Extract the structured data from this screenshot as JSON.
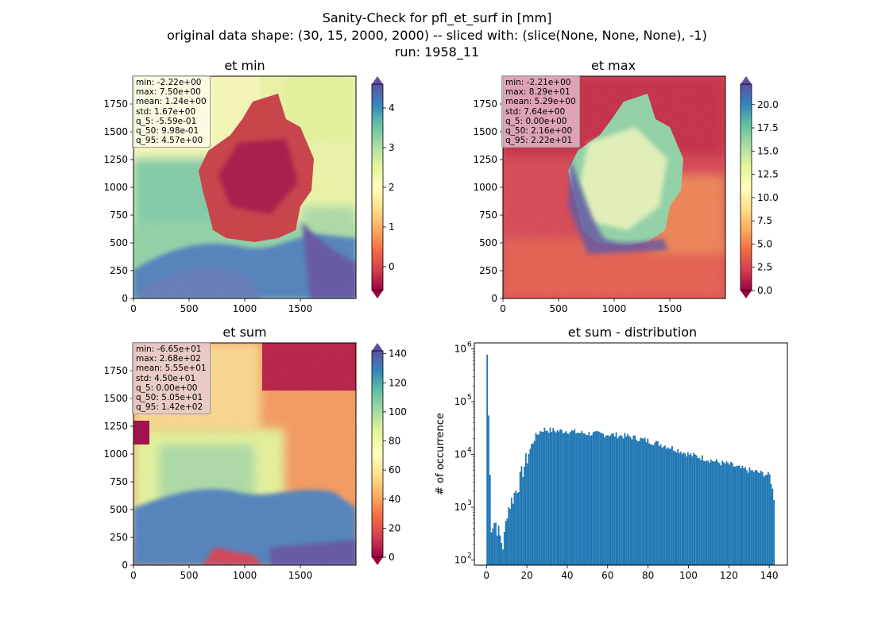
{
  "suptitle": {
    "line1": "Sanity-Check for pfl_et_surf in [mm]",
    "line2": "original data shape: (30, 15, 2000, 2000) -- sliced with: (slice(None, None, None), -1)",
    "line3": "run: 1958_11"
  },
  "colors": {
    "colormap": "Spectral",
    "colormap_stops": [
      "#9e0142",
      "#d53e4f",
      "#f46d43",
      "#fdae61",
      "#fee08b",
      "#ffffbf",
      "#e6f598",
      "#abdda4",
      "#66c2a5",
      "#3288bd",
      "#5e4fa2"
    ],
    "histogram_bar": "#1f77b4"
  },
  "panels": {
    "et_min": {
      "title": "et min",
      "x_ticks": [
        "0",
        "500",
        "1000",
        "1500"
      ],
      "y_ticks": [
        "0",
        "250",
        "500",
        "750",
        "1000",
        "1250",
        "1500",
        "1750"
      ],
      "colorbar_ticks": [
        "0",
        "1",
        "2",
        "3",
        "4"
      ],
      "colorbar_range": [
        -0.6,
        4.6
      ],
      "stats": {
        "min": "min: -2.22e+00",
        "max": "max: 7.50e+00",
        "mean": "mean: 1.24e+00",
        "std": "std: 1.67e+00",
        "q_5": "q_5: -5.59e-01",
        "q_50": "q_50: 9.98e-01",
        "q_95": "q_95: 4.57e+00"
      }
    },
    "et_max": {
      "title": "et max",
      "x_ticks": [
        "0",
        "500",
        "1000",
        "1500"
      ],
      "y_ticks": [
        "0",
        "250",
        "500",
        "750",
        "1000",
        "1250",
        "1500",
        "1750"
      ],
      "colorbar_ticks": [
        "0.0",
        "2.5",
        "5.0",
        "7.5",
        "10.0",
        "12.5",
        "15.0",
        "17.5",
        "20.0"
      ],
      "colorbar_range": [
        0,
        22.2
      ],
      "stats": {
        "min": "min: -2.21e+00",
        "max": "max: 8.29e+01",
        "mean": "mean: 5.29e+00",
        "std": "std: 7.64e+00",
        "q_5": "q_5: 0.00e+00",
        "q_50": "q_50: 2.16e+00",
        "q_95": "q_95: 2.22e+01"
      }
    },
    "et_sum": {
      "title": "et sum",
      "x_ticks": [
        "0",
        "500",
        "1000",
        "1500"
      ],
      "y_ticks": [
        "0",
        "250",
        "500",
        "750",
        "1000",
        "1250",
        "1500",
        "1750"
      ],
      "colorbar_ticks": [
        "0",
        "20",
        "40",
        "60",
        "80",
        "100",
        "120",
        "140"
      ],
      "colorbar_range": [
        0,
        142
      ],
      "stats": {
        "min": "min: -6.65e+01",
        "max": "max: 2.68e+02",
        "mean": "mean: 5.55e+01",
        "std": "std: 4.50e+01",
        "q_5": "q_5: 0.00e+00",
        "q_50": "q_50: 5.05e+01",
        "q_95": "q_95: 1.42e+02"
      }
    },
    "hist": {
      "title": "et sum - distribution",
      "ylabel": "# of occurrence",
      "x_ticks": [
        "0",
        "20",
        "40",
        "60",
        "80",
        "100",
        "120",
        "140"
      ],
      "y_ticks": [
        "10",
        "10",
        "10",
        "10",
        "10"
      ],
      "y_tick_exponents": [
        "2",
        "3",
        "4",
        "5",
        "6"
      ]
    }
  },
  "chart_data": [
    {
      "type": "heatmap",
      "title": "et min",
      "xlim": [
        0,
        2000
      ],
      "ylim": [
        0,
        2000
      ],
      "colorbar_range": [
        -0.6,
        4.6
      ]
    },
    {
      "type": "heatmap",
      "title": "et max",
      "xlim": [
        0,
        2000
      ],
      "ylim": [
        0,
        2000
      ],
      "colorbar_range": [
        0,
        22.2
      ]
    },
    {
      "type": "heatmap",
      "title": "et sum",
      "xlim": [
        0,
        2000
      ],
      "ylim": [
        0,
        2000
      ],
      "colorbar_range": [
        0,
        142
      ]
    },
    {
      "type": "bar",
      "title": "et sum - distribution",
      "ylabel": "# of occurrence",
      "y_scale": "log",
      "xlim": [
        -6,
        149
      ],
      "ylim": [
        80,
        1300000
      ],
      "bin_width": 0.71,
      "series": [
        {
          "x": [
            0,
            2,
            4,
            6,
            8,
            10,
            12,
            14,
            16,
            18,
            20,
            22,
            24,
            26,
            28,
            30,
            35,
            40,
            45,
            50,
            55,
            60,
            65,
            70,
            75,
            80,
            85,
            90,
            95,
            100,
            105,
            110,
            115,
            120,
            125,
            130,
            135,
            140,
            142
          ],
          "values": [
            780000,
            450,
            550,
            300,
            180,
            900,
            1300,
            2000,
            3000,
            5500,
            9000,
            15000,
            22000,
            27000,
            30000,
            29000,
            28000,
            28000,
            26000,
            25000,
            24500,
            24000,
            23000,
            22000,
            20000,
            18000,
            16000,
            14000,
            12000,
            10000,
            9000,
            8000,
            7000,
            6500,
            5500,
            5000,
            4500,
            4000,
            1500
          ]
        }
      ]
    }
  ]
}
